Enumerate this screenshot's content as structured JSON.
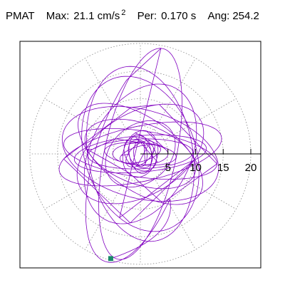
{
  "header": {
    "channel": "PMAT",
    "max_label": "Max:",
    "max_value": "21.1 cm/s",
    "max_exponent": "2",
    "period_label": "Per:",
    "period_value": "0.170 s",
    "angle_label": "Ang:",
    "angle_value": "254.2"
  },
  "colors": {
    "trace": "#8000c0",
    "endpoint": "#1a8a6a",
    "grid": "#888888",
    "frame": "#000000",
    "axis": "#000000"
  },
  "chart_data": {
    "type": "polar-trajectory",
    "title": "",
    "radial_unit": "cm/s^2",
    "rlim": [
      0,
      22
    ],
    "rings": [
      5,
      10,
      15,
      20
    ],
    "tick_labels": [
      "5",
      "10",
      "15",
      "20"
    ],
    "angular_grid_deg": 30,
    "grid": true,
    "endpoint": {
      "r": 19.7,
      "angle_deg": 254.2,
      "marker": "square"
    },
    "ellipses": [
      {
        "a": 2.3,
        "b": 1.2,
        "rot": 95,
        "turns": 1.6
      },
      {
        "a": 3.1,
        "b": 1.7,
        "rot": 40,
        "turns": 1.5
      },
      {
        "a": 2.7,
        "b": 2.0,
        "rot": -60,
        "turns": 1.4
      },
      {
        "a": 3.8,
        "b": 1.4,
        "rot": 15,
        "turns": 1.3
      },
      {
        "a": 2.0,
        "b": 3.6,
        "rot": 10,
        "turns": 1.3
      },
      {
        "a": 3.4,
        "b": 2.6,
        "rot": 130,
        "turns": 1.2
      },
      {
        "a": 5.0,
        "b": 2.0,
        "rot": 0,
        "turns": 1.2
      },
      {
        "a": 4.3,
        "b": 3.1,
        "rot": 75,
        "turns": 1.1
      },
      {
        "a": 6.5,
        "b": 2.0,
        "rot": -5,
        "turns": 1.1
      },
      {
        "a": 7.0,
        "b": 5.2,
        "rot": 40,
        "turns": 1.0
      },
      {
        "a": 9.5,
        "b": 2.7,
        "rot": 2,
        "turns": 1.0
      },
      {
        "a": 10.5,
        "b": 5.5,
        "rot": -20,
        "turns": 1.0
      },
      {
        "a": 12.0,
        "b": 3.3,
        "rot": 5,
        "turns": 1.0
      },
      {
        "a": 13.0,
        "b": 6.5,
        "rot": -35,
        "turns": 1.0
      },
      {
        "a": 14.0,
        "b": 4.2,
        "rot": -8,
        "turns": 1.0
      },
      {
        "a": 12.5,
        "b": 7.5,
        "rot": 30,
        "turns": 1.0
      },
      {
        "a": 14.5,
        "b": 8.0,
        "rot": -15,
        "turns": 1.0
      },
      {
        "a": 15.0,
        "b": 5.0,
        "rot": 12,
        "turns": 1.0
      },
      {
        "a": 13.5,
        "b": 9.0,
        "rot": 62,
        "turns": 1.0
      },
      {
        "a": 16.0,
        "b": 9.5,
        "rot": 100,
        "turns": 1.0
      },
      {
        "a": 14.5,
        "b": 10.0,
        "rot": -70,
        "turns": 1.0
      },
      {
        "a": 19.5,
        "b": 6.5,
        "rot": 78,
        "turns": 1.0
      },
      {
        "a": 20.5,
        "b": 8.0,
        "rot": 72,
        "turns": 0.55
      }
    ]
  }
}
